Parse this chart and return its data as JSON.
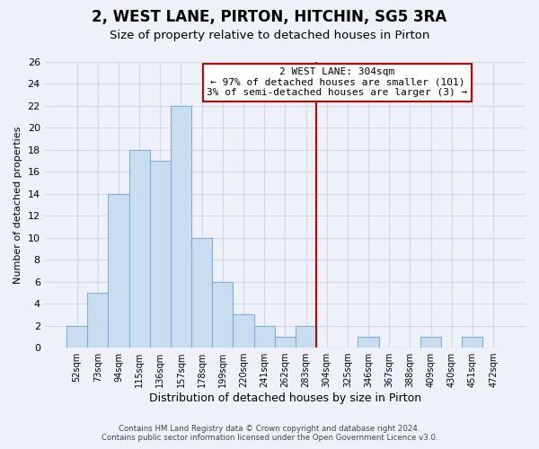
{
  "title": "2, WEST LANE, PIRTON, HITCHIN, SG5 3RA",
  "subtitle": "Size of property relative to detached houses in Pirton",
  "xlabel": "Distribution of detached houses by size in Pirton",
  "ylabel": "Number of detached properties",
  "bin_labels": [
    "52sqm",
    "73sqm",
    "94sqm",
    "115sqm",
    "136sqm",
    "157sqm",
    "178sqm",
    "199sqm",
    "220sqm",
    "241sqm",
    "262sqm",
    "283sqm",
    "304sqm",
    "325sqm",
    "346sqm",
    "367sqm",
    "388sqm",
    "409sqm",
    "430sqm",
    "451sqm",
    "472sqm"
  ],
  "bar_heights": [
    2,
    5,
    14,
    18,
    17,
    22,
    10,
    6,
    3,
    2,
    1,
    2,
    0,
    0,
    1,
    0,
    0,
    1,
    0,
    1,
    0
  ],
  "bar_color": "#c9ddf0",
  "bar_edge_color": "#7bafd4",
  "vline_label_index": 12,
  "vline_color": "#cc0000",
  "annotation_title": "2 WEST LANE: 304sqm",
  "annotation_line1": "← 97% of detached houses are smaller (101)",
  "annotation_line2": "3% of semi-detached houses are larger (3) →",
  "annotation_box_edge_color": "#cc0000",
  "ylim": [
    0,
    26
  ],
  "yticks": [
    0,
    2,
    4,
    6,
    8,
    10,
    12,
    14,
    16,
    18,
    20,
    22,
    24,
    26
  ],
  "footer_line1": "Contains HM Land Registry data © Crown copyright and database right 2024.",
  "footer_line2": "Contains public sector information licensed under the Open Government Licence v3.0.",
  "background_color": "#eef2f8",
  "grid_color": "#d0d8e8",
  "title_fontsize": 12,
  "subtitle_fontsize": 9.5
}
